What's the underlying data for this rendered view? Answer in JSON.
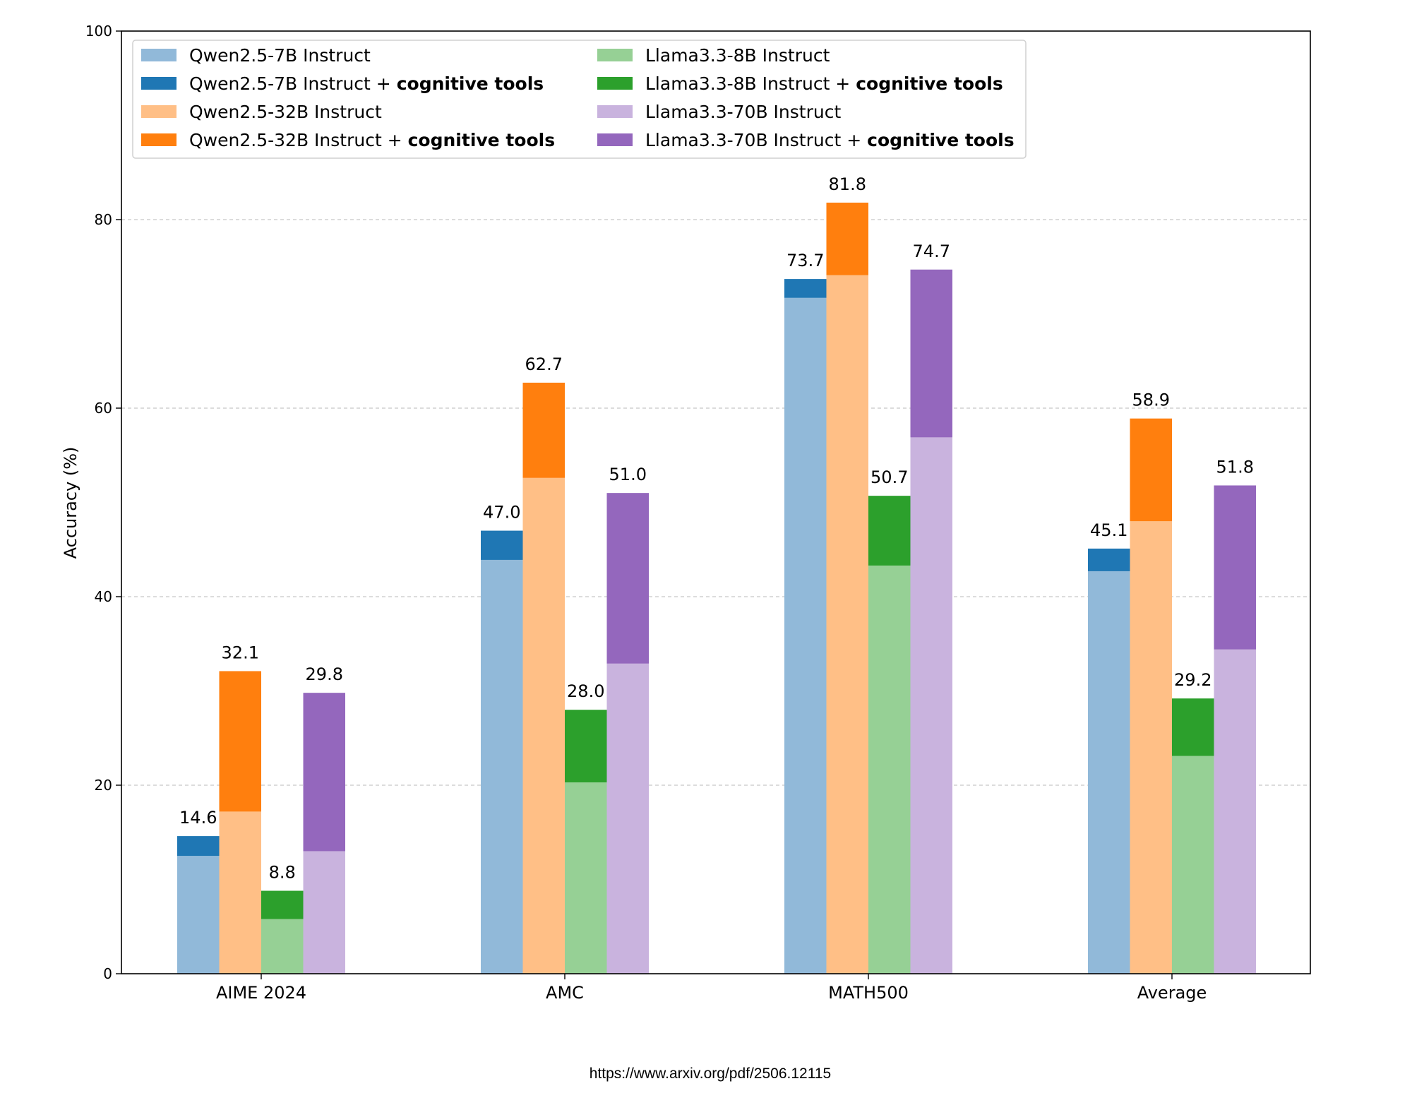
{
  "chart_data": {
    "type": "bar",
    "ylabel": "Accuracy (%)",
    "xlabel": "",
    "ylim": [
      0,
      100
    ],
    "yticks": [
      0,
      20,
      40,
      60,
      80,
      100
    ],
    "grid": "horizontal dashed",
    "legend_position": "top-left",
    "categories": [
      "AIME 2024",
      "AMC",
      "MATH500",
      "Average"
    ],
    "groups": [
      {
        "model": "Qwen2.5-7B",
        "base_label": "Qwen2.5-7B Instruct",
        "tools_label_prefix": "Qwen2.5-7B Instruct + ",
        "tools_label_bold": "cognitive tools",
        "base_color": "#91b9d9",
        "tools_color": "#1f77b4",
        "base_values": [
          12.5,
          43.9,
          71.7,
          42.7
        ],
        "tools_values": [
          14.6,
          47.0,
          73.7,
          45.1
        ]
      },
      {
        "model": "Qwen2.5-32B",
        "base_label": "Qwen2.5-32B Instruct",
        "tools_label_prefix": "Qwen2.5-32B Instruct + ",
        "tools_label_bold": "cognitive tools",
        "base_color": "#ffbf86",
        "tools_color": "#ff7f0e",
        "base_values": [
          17.2,
          52.6,
          74.1,
          48.0
        ],
        "tools_values": [
          32.1,
          62.7,
          81.8,
          58.9
        ]
      },
      {
        "model": "Llama3.3-8B",
        "base_label": "Llama3.3-8B Instruct",
        "tools_label_prefix": "Llama3.3-8B Instruct + ",
        "tools_label_bold": "cognitive tools",
        "base_color": "#96d095",
        "tools_color": "#2ca02c",
        "base_values": [
          5.8,
          20.3,
          43.3,
          23.1
        ],
        "tools_values": [
          8.8,
          28.0,
          50.7,
          29.2
        ]
      },
      {
        "model": "Llama3.3-70B",
        "base_label": "Llama3.3-70B Instruct",
        "tools_label_prefix": "Llama3.3-70B Instruct + ",
        "tools_label_bold": "cognitive tools",
        "base_color": "#c9b3de",
        "tools_color": "#9467bd",
        "base_values": [
          13.0,
          32.9,
          56.9,
          34.4
        ],
        "tools_values": [
          29.8,
          51.0,
          74.7,
          51.8
        ]
      }
    ],
    "value_labels": [
      [
        "14.6",
        "47.0",
        "73.7",
        "45.1"
      ],
      [
        "32.1",
        "62.7",
        "81.8",
        "58.9"
      ],
      [
        "8.8",
        "28.0",
        "50.7",
        "29.2"
      ],
      [
        "29.8",
        "51.0",
        "74.7",
        "51.8"
      ]
    ]
  },
  "source_url": "https://www.arxiv.org/pdf/2506.12115"
}
